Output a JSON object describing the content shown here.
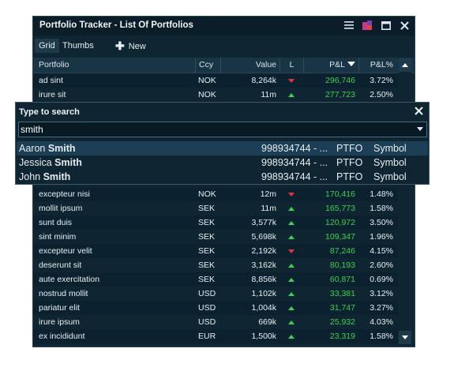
{
  "window": {
    "title": "Portfolio Tracker - List Of Portfolios"
  },
  "toolbar": {
    "tabs": [
      {
        "label": "Grid",
        "active": true
      },
      {
        "label": "Thumbs",
        "active": false
      }
    ],
    "new_label": "New"
  },
  "columns": {
    "portfolio": "Portfolio",
    "ccy": "Ccy",
    "value": "Value",
    "l": "L",
    "pl": "P&L",
    "plp": "P&L%"
  },
  "rows": [
    {
      "portfolio": "ad sint",
      "ccy": "NOK",
      "value": "8,264k",
      "dir": "down",
      "pl": "296,746",
      "plp": "3.72%"
    },
    {
      "portfolio": "irure sit",
      "ccy": "NOK",
      "value": "11m",
      "dir": "up",
      "pl": "277,723",
      "plp": "2.50%"
    },
    {
      "portfolio": "",
      "ccy": "",
      "value": "",
      "dir": "",
      "pl": "",
      "plp": ""
    },
    {
      "portfolio": "",
      "ccy": "",
      "value": "",
      "dir": "",
      "pl": "",
      "plp": ""
    },
    {
      "portfolio": "",
      "ccy": "",
      "value": "",
      "dir": "",
      "pl": "",
      "plp": ""
    },
    {
      "portfolio": "",
      "ccy": "",
      "value": "",
      "dir": "",
      "pl": "",
      "plp": ""
    },
    {
      "portfolio": "",
      "ccy": "",
      "value": "",
      "dir": "",
      "pl": "",
      "plp": ""
    },
    {
      "portfolio": "",
      "ccy": "",
      "value": "",
      "dir": "",
      "pl": "",
      "plp": ""
    },
    {
      "portfolio": "excepteur nisi",
      "ccy": "NOK",
      "value": "12m",
      "dir": "down",
      "pl": "170,416",
      "plp": "1.48%"
    },
    {
      "portfolio": "mollit ipsum",
      "ccy": "SEK",
      "value": "11m",
      "dir": "up",
      "pl": "165,773",
      "plp": "1.58%"
    },
    {
      "portfolio": "sunt duis",
      "ccy": "SEK",
      "value": "3,577k",
      "dir": "up",
      "pl": "120,972",
      "plp": "3.50%"
    },
    {
      "portfolio": "sint minim",
      "ccy": "SEK",
      "value": "5,698k",
      "dir": "up",
      "pl": "109,347",
      "plp": "1.96%"
    },
    {
      "portfolio": "excepteur velit",
      "ccy": "SEK",
      "value": "2,192k",
      "dir": "down",
      "pl": "87,246",
      "plp": "4.15%"
    },
    {
      "portfolio": "deserunt sit",
      "ccy": "SEK",
      "value": "3,162k",
      "dir": "up",
      "pl": "80,193",
      "plp": "2.60%"
    },
    {
      "portfolio": "aute exercitation",
      "ccy": "SEK",
      "value": "8,856k",
      "dir": "up",
      "pl": "60,871",
      "plp": "0.69%"
    },
    {
      "portfolio": "nostrud mollit",
      "ccy": "USD",
      "value": "1,102k",
      "dir": "up",
      "pl": "33,381",
      "plp": "3.12%"
    },
    {
      "portfolio": "pariatur elit",
      "ccy": "USD",
      "value": "1,004k",
      "dir": "up",
      "pl": "31,747",
      "plp": "3.27%"
    },
    {
      "portfolio": "irure ipsum",
      "ccy": "USD",
      "value": "669k",
      "dir": "up",
      "pl": "25,932",
      "plp": "4.03%"
    },
    {
      "portfolio": "ex incididunt",
      "ccy": "EUR",
      "value": "1,500k",
      "dir": "up",
      "pl": "23,319",
      "plp": "1.58%"
    }
  ],
  "colors": {
    "up": "#3cd24e",
    "down": "#e8333a",
    "background": "#0f2532",
    "titlebar": "#0b1d28"
  },
  "icons": {
    "menu": "menu-icon",
    "color": "color-picker-icon",
    "maximize": "maximize-icon",
    "close": "close-icon"
  },
  "search": {
    "title": "Type to search",
    "value": "smith",
    "results": [
      {
        "first": "Aaron ",
        "match": "Smith",
        "id": "998934744 - ...",
        "type": "PTFO",
        "kind": "Symbol",
        "selected": true
      },
      {
        "first": "Jessica ",
        "match": "Smith",
        "id": "998934744 - ...",
        "type": "PTFO",
        "kind": "Symbol",
        "selected": false
      },
      {
        "first": "John ",
        "match": "Smith",
        "id": "998934744 - ...",
        "type": "PTFO",
        "kind": "Symbol",
        "selected": false
      }
    ]
  }
}
